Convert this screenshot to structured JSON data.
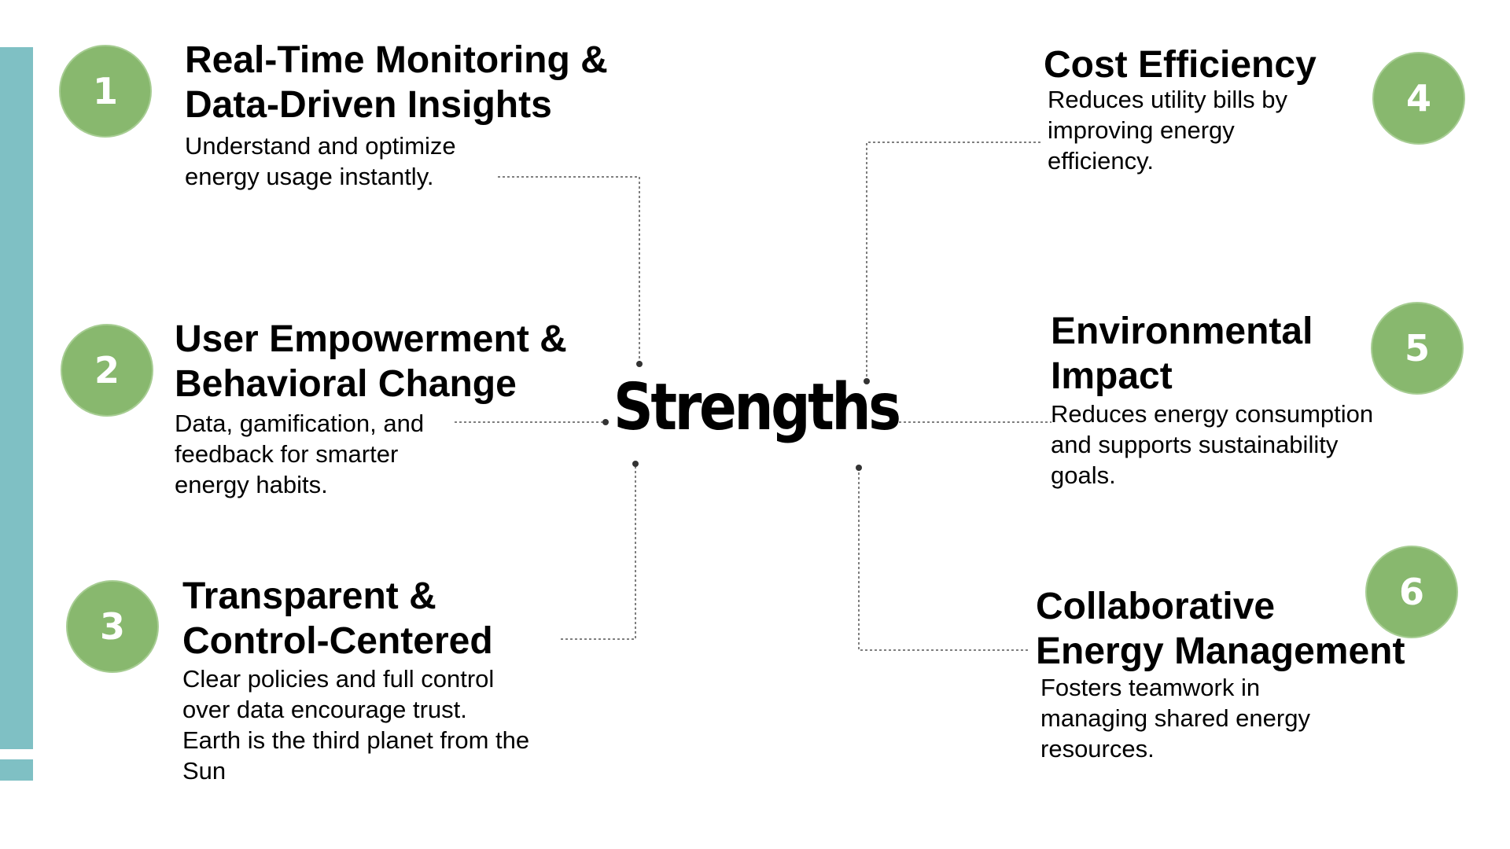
{
  "center": {
    "title": "Strengths"
  },
  "items": [
    {
      "number": "1",
      "title_lines": [
        "Real-Time Monitoring &",
        "Data-Driven Insights"
      ],
      "desc_lines": [
        "Understand and optimize",
        "energy usage instantly."
      ]
    },
    {
      "number": "2",
      "title_lines": [
        "User Empowerment &",
        "Behavioral Change"
      ],
      "desc_lines": [
        "Data, gamification, and",
        "feedback for smarter",
        "energy habits."
      ]
    },
    {
      "number": "3",
      "title_lines": [
        "Transparent &",
        "Control-Centered"
      ],
      "desc_lines": [
        "Clear policies and full control",
        "over data encourage trust.",
        "Earth is the third planet from the",
        "Sun"
      ]
    },
    {
      "number": "4",
      "title_lines": [
        "Cost Efficiency"
      ],
      "desc_lines": [
        "Reduces utility bills by",
        "improving energy",
        "efficiency."
      ]
    },
    {
      "number": "5",
      "title_lines": [
        "Environmental",
        "Impact"
      ],
      "desc_lines": [
        "Reduces energy consumption",
        "and supports sustainability",
        "goals."
      ]
    },
    {
      "number": "6",
      "title_lines": [
        "Collaborative",
        "Energy Management"
      ],
      "desc_lines": [
        "Fosters teamwork in",
        "managing shared energy",
        "resources."
      ]
    }
  ],
  "colors": {
    "badge_fill": "#88b86e",
    "badge_text": "#ffffff",
    "accent_bar": "#7fc0c4",
    "connector": "#555555"
  }
}
